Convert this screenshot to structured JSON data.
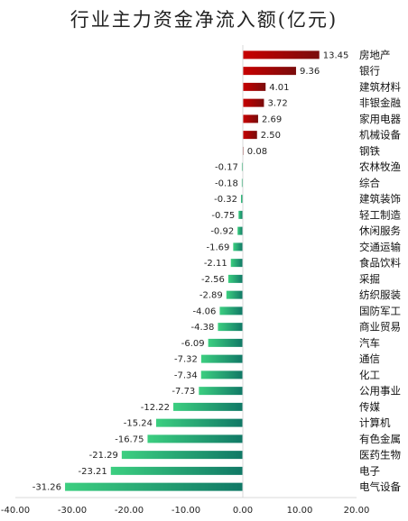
{
  "chart_data": {
    "type": "bar",
    "orientation": "horizontal",
    "title": "行业主力资金净流入额(亿元)",
    "xlabel": "",
    "ylabel": "",
    "xlim": [
      -40,
      20
    ],
    "xticks": [
      "-40.00",
      "-30.00",
      "-20.00",
      "-10.00",
      "0.00",
      "10.00",
      "20.00"
    ],
    "grid": false,
    "legend": "none",
    "colors": {
      "positive_start": "#c80000",
      "positive_end": "#7a0c0c",
      "negative_start": "#3ccf80",
      "negative_end": "#107866"
    },
    "categories": [
      "房地产",
      "银行",
      "建筑材料",
      "非银金融",
      "家用电器",
      "机械设备",
      "钢铁",
      "农林牧渔",
      "综合",
      "建筑装饰",
      "轻工制造",
      "休闲服务",
      "交通运输",
      "食品饮料",
      "采掘",
      "纺织服装",
      "国防军工",
      "商业贸易",
      "汽车",
      "通信",
      "化工",
      "公用事业",
      "传媒",
      "计算机",
      "有色金属",
      "医药生物",
      "电子",
      "电气设备"
    ],
    "values": [
      13.45,
      9.36,
      4.01,
      3.72,
      2.69,
      2.5,
      0.08,
      -0.17,
      -0.18,
      -0.32,
      -0.75,
      -0.92,
      -1.69,
      -2.11,
      -2.56,
      -2.89,
      -4.06,
      -4.38,
      -6.09,
      -7.32,
      -7.34,
      -7.73,
      -12.22,
      -15.24,
      -16.75,
      -21.29,
      -23.21,
      -31.26
    ],
    "value_labels": [
      "13.45",
      "9.36",
      "4.01",
      "3.72",
      "2.69",
      "2.50",
      "0.08",
      "-0.17",
      "-0.18",
      "-0.32",
      "-0.75",
      "-0.92",
      "-1.69",
      "-2.11",
      "-2.56",
      "-2.89",
      "-4.06",
      "-4.38",
      "-6.09",
      "-7.32",
      "-7.34",
      "-7.73",
      "-12.22",
      "-15.24",
      "-16.75",
      "-21.29",
      "-23.21",
      "-31.26"
    ]
  }
}
